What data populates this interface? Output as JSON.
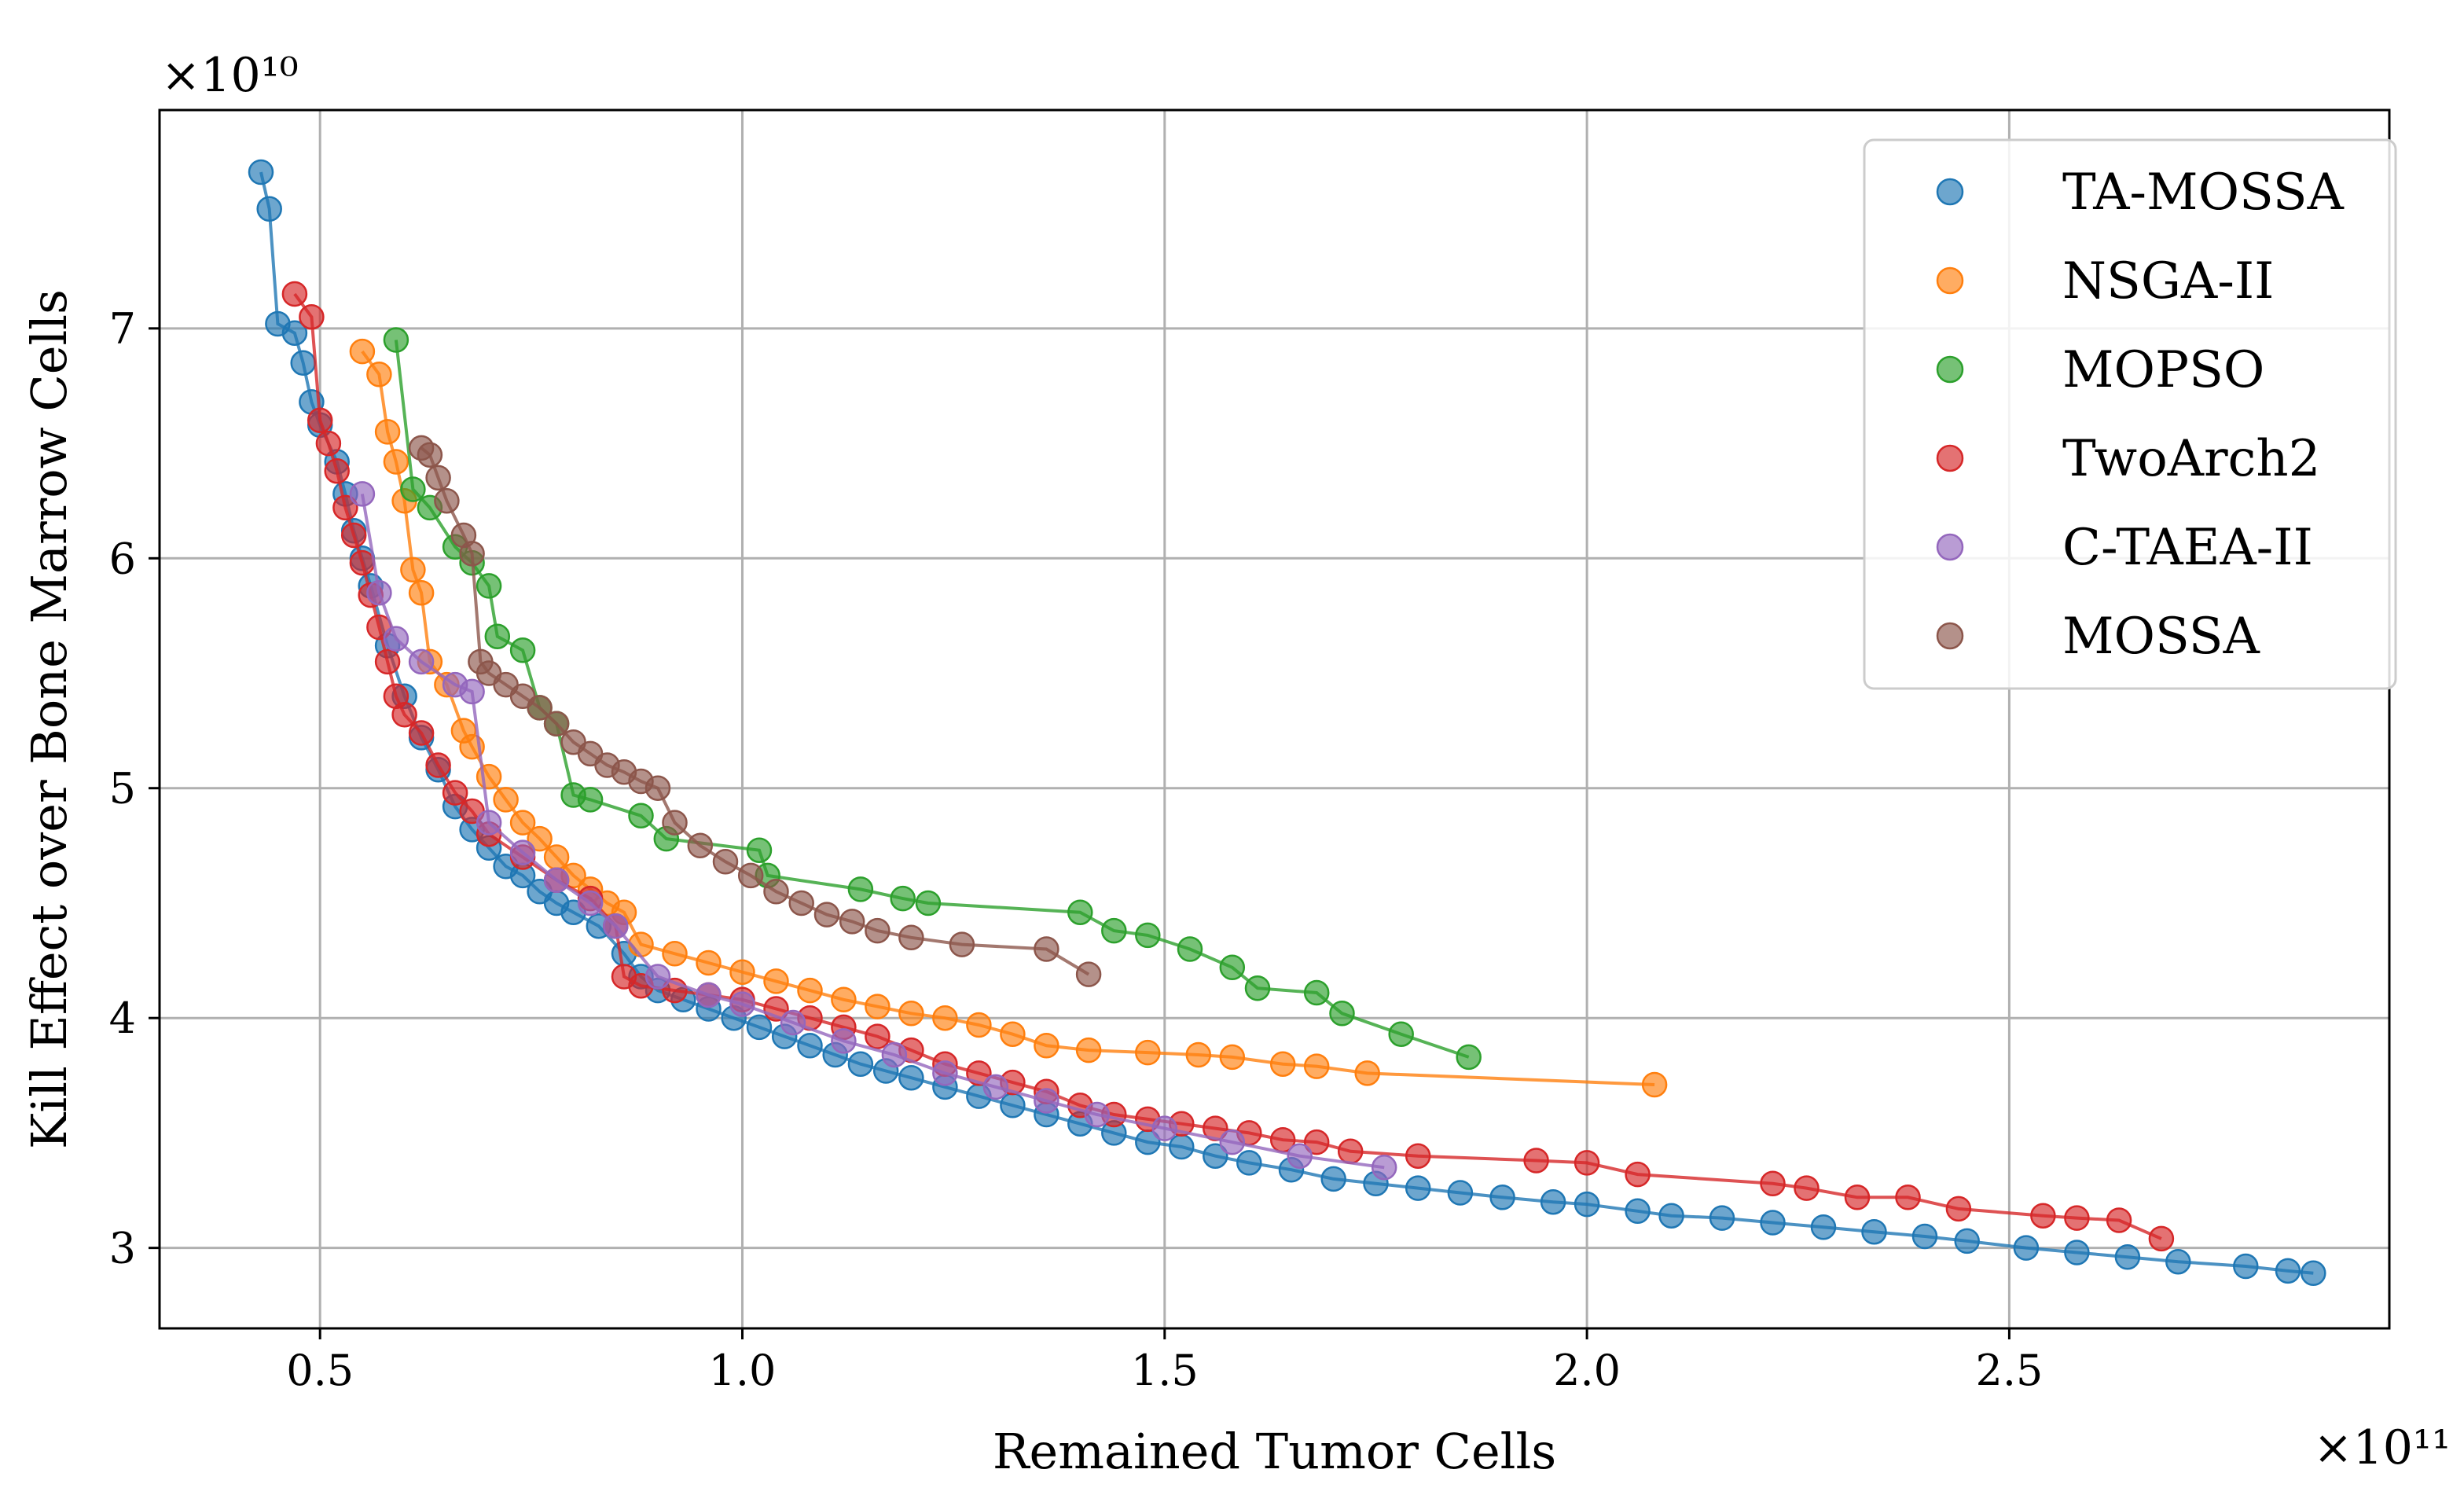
{
  "chart_data": {
    "type": "scatter",
    "title": "",
    "xlabel": "Remained Tumor Cells",
    "ylabel": "Kill Effect over Bone Marrow Cells",
    "x_scale_note": "×10¹¹",
    "y_scale_note": "×10¹⁰",
    "xlim": [
      0.31,
      2.95
    ],
    "ylim": [
      2.65,
      7.95
    ],
    "x_ticks": [
      0.5,
      1.0,
      1.5,
      2.0,
      2.5
    ],
    "x_tick_labels": [
      "0.5",
      "1.0",
      "1.5",
      "2.0",
      "2.5"
    ],
    "y_ticks": [
      3,
      4,
      5,
      6,
      7
    ],
    "y_tick_labels": [
      "3",
      "4",
      "5",
      "6",
      "7"
    ],
    "grid": true,
    "legend_position": "top-right",
    "series": [
      {
        "name": "TA-MOSSA",
        "color": "#1f77b4",
        "points": [
          [
            0.43,
            7.68
          ],
          [
            0.44,
            7.52
          ],
          [
            0.45,
            7.02
          ],
          [
            0.47,
            6.98
          ],
          [
            0.48,
            6.85
          ],
          [
            0.49,
            6.68
          ],
          [
            0.5,
            6.58
          ],
          [
            0.52,
            6.42
          ],
          [
            0.53,
            6.28
          ],
          [
            0.54,
            6.12
          ],
          [
            0.55,
            6.0
          ],
          [
            0.56,
            5.88
          ],
          [
            0.58,
            5.62
          ],
          [
            0.6,
            5.4
          ],
          [
            0.62,
            5.22
          ],
          [
            0.64,
            5.08
          ],
          [
            0.66,
            4.92
          ],
          [
            0.68,
            4.82
          ],
          [
            0.7,
            4.74
          ],
          [
            0.72,
            4.66
          ],
          [
            0.74,
            4.62
          ],
          [
            0.76,
            4.55
          ],
          [
            0.78,
            4.5
          ],
          [
            0.8,
            4.46
          ],
          [
            0.83,
            4.4
          ],
          [
            0.86,
            4.28
          ],
          [
            0.88,
            4.18
          ],
          [
            0.9,
            4.12
          ],
          [
            0.93,
            4.08
          ],
          [
            0.96,
            4.04
          ],
          [
            0.99,
            4.0
          ],
          [
            1.02,
            3.96
          ],
          [
            1.05,
            3.92
          ],
          [
            1.08,
            3.88
          ],
          [
            1.11,
            3.84
          ],
          [
            1.14,
            3.8
          ],
          [
            1.17,
            3.77
          ],
          [
            1.2,
            3.74
          ],
          [
            1.24,
            3.7
          ],
          [
            1.28,
            3.66
          ],
          [
            1.32,
            3.62
          ],
          [
            1.36,
            3.58
          ],
          [
            1.4,
            3.54
          ],
          [
            1.44,
            3.5
          ],
          [
            1.48,
            3.46
          ],
          [
            1.52,
            3.44
          ],
          [
            1.56,
            3.4
          ],
          [
            1.6,
            3.37
          ],
          [
            1.65,
            3.34
          ],
          [
            1.7,
            3.3
          ],
          [
            1.75,
            3.28
          ],
          [
            1.8,
            3.26
          ],
          [
            1.85,
            3.24
          ],
          [
            1.9,
            3.22
          ],
          [
            1.96,
            3.2
          ],
          [
            2.0,
            3.19
          ],
          [
            2.06,
            3.16
          ],
          [
            2.1,
            3.14
          ],
          [
            2.16,
            3.13
          ],
          [
            2.22,
            3.11
          ],
          [
            2.28,
            3.09
          ],
          [
            2.34,
            3.07
          ],
          [
            2.4,
            3.05
          ],
          [
            2.45,
            3.03
          ],
          [
            2.52,
            3.0
          ],
          [
            2.58,
            2.98
          ],
          [
            2.64,
            2.96
          ],
          [
            2.7,
            2.94
          ],
          [
            2.78,
            2.92
          ],
          [
            2.83,
            2.9
          ],
          [
            2.86,
            2.89
          ]
        ]
      },
      {
        "name": "NSGA-II",
        "color": "#ff7f0e",
        "points": [
          [
            0.55,
            6.9
          ],
          [
            0.57,
            6.8
          ],
          [
            0.58,
            6.55
          ],
          [
            0.59,
            6.42
          ],
          [
            0.6,
            6.25
          ],
          [
            0.61,
            5.95
          ],
          [
            0.62,
            5.85
          ],
          [
            0.63,
            5.55
          ],
          [
            0.65,
            5.45
          ],
          [
            0.67,
            5.25
          ],
          [
            0.68,
            5.18
          ],
          [
            0.7,
            5.05
          ],
          [
            0.72,
            4.95
          ],
          [
            0.74,
            4.85
          ],
          [
            0.76,
            4.78
          ],
          [
            0.78,
            4.7
          ],
          [
            0.8,
            4.62
          ],
          [
            0.82,
            4.56
          ],
          [
            0.84,
            4.5
          ],
          [
            0.86,
            4.46
          ],
          [
            0.88,
            4.32
          ],
          [
            0.92,
            4.28
          ],
          [
            0.96,
            4.24
          ],
          [
            1.0,
            4.2
          ],
          [
            1.04,
            4.16
          ],
          [
            1.08,
            4.12
          ],
          [
            1.12,
            4.08
          ],
          [
            1.16,
            4.05
          ],
          [
            1.2,
            4.02
          ],
          [
            1.24,
            4.0
          ],
          [
            1.28,
            3.97
          ],
          [
            1.32,
            3.93
          ],
          [
            1.36,
            3.88
          ],
          [
            1.41,
            3.86
          ],
          [
            1.48,
            3.85
          ],
          [
            1.54,
            3.84
          ],
          [
            1.58,
            3.83
          ],
          [
            1.64,
            3.8
          ],
          [
            1.68,
            3.79
          ],
          [
            1.74,
            3.76
          ],
          [
            2.08,
            3.71
          ]
        ]
      },
      {
        "name": "MOPSO",
        "color": "#2ca02c",
        "points": [
          [
            0.59,
            6.95
          ],
          [
            0.61,
            6.3
          ],
          [
            0.63,
            6.22
          ],
          [
            0.66,
            6.05
          ],
          [
            0.68,
            5.98
          ],
          [
            0.7,
            5.88
          ],
          [
            0.71,
            5.66
          ],
          [
            0.74,
            5.6
          ],
          [
            0.76,
            5.35
          ],
          [
            0.78,
            5.28
          ],
          [
            0.8,
            4.97
          ],
          [
            0.82,
            4.95
          ],
          [
            0.88,
            4.88
          ],
          [
            0.91,
            4.78
          ],
          [
            1.02,
            4.73
          ],
          [
            1.03,
            4.62
          ],
          [
            1.14,
            4.56
          ],
          [
            1.19,
            4.52
          ],
          [
            1.22,
            4.5
          ],
          [
            1.4,
            4.46
          ],
          [
            1.44,
            4.38
          ],
          [
            1.48,
            4.36
          ],
          [
            1.53,
            4.3
          ],
          [
            1.58,
            4.22
          ],
          [
            1.61,
            4.13
          ],
          [
            1.68,
            4.11
          ],
          [
            1.71,
            4.02
          ],
          [
            1.78,
            3.93
          ],
          [
            1.86,
            3.83
          ]
        ]
      },
      {
        "name": "TwoArch2",
        "color": "#d62728",
        "points": [
          [
            0.47,
            7.15
          ],
          [
            0.49,
            7.05
          ],
          [
            0.5,
            6.6
          ],
          [
            0.51,
            6.5
          ],
          [
            0.52,
            6.38
          ],
          [
            0.53,
            6.22
          ],
          [
            0.54,
            6.1
          ],
          [
            0.55,
            5.98
          ],
          [
            0.56,
            5.84
          ],
          [
            0.57,
            5.7
          ],
          [
            0.58,
            5.55
          ],
          [
            0.59,
            5.4
          ],
          [
            0.6,
            5.32
          ],
          [
            0.62,
            5.24
          ],
          [
            0.64,
            5.1
          ],
          [
            0.66,
            4.98
          ],
          [
            0.68,
            4.9
          ],
          [
            0.7,
            4.8
          ],
          [
            0.74,
            4.7
          ],
          [
            0.78,
            4.6
          ],
          [
            0.82,
            4.52
          ],
          [
            0.85,
            4.4
          ],
          [
            0.86,
            4.18
          ],
          [
            0.88,
            4.14
          ],
          [
            0.92,
            4.12
          ],
          [
            0.96,
            4.1
          ],
          [
            1.0,
            4.08
          ],
          [
            1.04,
            4.04
          ],
          [
            1.08,
            4.0
          ],
          [
            1.12,
            3.96
          ],
          [
            1.16,
            3.92
          ],
          [
            1.2,
            3.86
          ],
          [
            1.24,
            3.8
          ],
          [
            1.28,
            3.76
          ],
          [
            1.32,
            3.72
          ],
          [
            1.36,
            3.68
          ],
          [
            1.4,
            3.62
          ],
          [
            1.44,
            3.58
          ],
          [
            1.48,
            3.56
          ],
          [
            1.52,
            3.54
          ],
          [
            1.56,
            3.52
          ],
          [
            1.6,
            3.5
          ],
          [
            1.64,
            3.47
          ],
          [
            1.68,
            3.46
          ],
          [
            1.72,
            3.42
          ],
          [
            1.8,
            3.4
          ],
          [
            1.94,
            3.38
          ],
          [
            2.0,
            3.37
          ],
          [
            2.06,
            3.32
          ],
          [
            2.22,
            3.28
          ],
          [
            2.26,
            3.26
          ],
          [
            2.32,
            3.22
          ],
          [
            2.38,
            3.22
          ],
          [
            2.44,
            3.17
          ],
          [
            2.54,
            3.14
          ],
          [
            2.58,
            3.13
          ],
          [
            2.63,
            3.12
          ],
          [
            2.68,
            3.04
          ]
        ]
      },
      {
        "name": "C-TAEA-II",
        "color": "#9467bd",
        "points": [
          [
            0.55,
            6.28
          ],
          [
            0.57,
            5.85
          ],
          [
            0.59,
            5.65
          ],
          [
            0.62,
            5.55
          ],
          [
            0.66,
            5.45
          ],
          [
            0.68,
            5.42
          ],
          [
            0.7,
            4.85
          ],
          [
            0.74,
            4.72
          ],
          [
            0.78,
            4.6
          ],
          [
            0.82,
            4.5
          ],
          [
            0.85,
            4.4
          ],
          [
            0.9,
            4.18
          ],
          [
            0.96,
            4.1
          ],
          [
            1.0,
            4.06
          ],
          [
            1.06,
            3.98
          ],
          [
            1.12,
            3.9
          ],
          [
            1.18,
            3.84
          ],
          [
            1.24,
            3.76
          ],
          [
            1.3,
            3.7
          ],
          [
            1.36,
            3.64
          ],
          [
            1.42,
            3.58
          ],
          [
            1.5,
            3.52
          ],
          [
            1.58,
            3.46
          ],
          [
            1.66,
            3.4
          ],
          [
            1.76,
            3.35
          ]
        ]
      },
      {
        "name": "MOSSA",
        "color": "#8c564b",
        "points": [
          [
            0.62,
            6.48
          ],
          [
            0.63,
            6.45
          ],
          [
            0.64,
            6.35
          ],
          [
            0.65,
            6.25
          ],
          [
            0.67,
            6.1
          ],
          [
            0.68,
            6.02
          ],
          [
            0.69,
            5.55
          ],
          [
            0.7,
            5.5
          ],
          [
            0.72,
            5.45
          ],
          [
            0.74,
            5.4
          ],
          [
            0.76,
            5.35
          ],
          [
            0.78,
            5.28
          ],
          [
            0.8,
            5.2
          ],
          [
            0.82,
            5.15
          ],
          [
            0.84,
            5.1
          ],
          [
            0.86,
            5.07
          ],
          [
            0.88,
            5.03
          ],
          [
            0.9,
            5.0
          ],
          [
            0.92,
            4.85
          ],
          [
            0.95,
            4.75
          ],
          [
            0.98,
            4.68
          ],
          [
            1.01,
            4.62
          ],
          [
            1.04,
            4.55
          ],
          [
            1.07,
            4.5
          ],
          [
            1.1,
            4.45
          ],
          [
            1.13,
            4.42
          ],
          [
            1.16,
            4.38
          ],
          [
            1.2,
            4.35
          ],
          [
            1.26,
            4.32
          ],
          [
            1.36,
            4.3
          ],
          [
            1.41,
            4.19
          ]
        ]
      }
    ]
  }
}
